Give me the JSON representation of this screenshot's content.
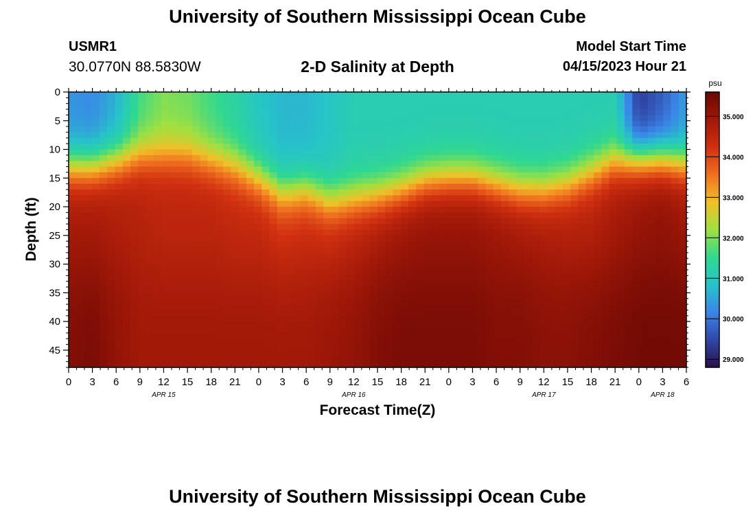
{
  "header": {
    "title": "University of Southern Mississippi Ocean Cube",
    "station_id": "USMR1",
    "coordinates": "30.0770N  88.5830W",
    "plot_title": "2-D Salinity at Depth",
    "model_start_label": "Model Start Time",
    "model_start_value": "04/15/2023 Hour 21"
  },
  "footer": {
    "title": "University of Southern Mississippi Ocean Cube"
  },
  "chart_data": {
    "type": "heatmap",
    "title": "2-D Salinity at Depth",
    "xlabel": "Forecast Time(Z)",
    "ylabel": "Depth (ft)",
    "x_range_hours": [
      0,
      78
    ],
    "ylim": [
      0,
      48
    ],
    "y_inverted": true,
    "x_tick_labels": [
      "0",
      "3",
      "6",
      "9",
      "12",
      "15",
      "18",
      "21",
      "0",
      "3",
      "6",
      "9",
      "12",
      "15",
      "18",
      "21",
      "0",
      "3",
      "6",
      "9",
      "12",
      "15",
      "18",
      "21",
      "0",
      "3",
      "6"
    ],
    "date_labels": [
      {
        "label": "APR 15",
        "hour": 12
      },
      {
        "label": "APR 16",
        "hour": 36
      },
      {
        "label": "APR 17",
        "hour": 60
      },
      {
        "label": "APR 18",
        "hour": 75
      }
    ],
    "y_ticks": [
      0,
      5,
      10,
      15,
      20,
      25,
      30,
      35,
      40,
      45
    ],
    "colorbar": {
      "unit": "psu",
      "min": 28.8,
      "max": 35.6,
      "tick_labels": [
        "29.000",
        "30.000",
        "31.000",
        "32.000",
        "33.000",
        "34.000",
        "35.000"
      ],
      "tick_values": [
        29,
        30,
        31,
        32,
        33,
        34,
        35
      ],
      "colors": [
        "#2a0f4a",
        "#3048a8",
        "#3a86e8",
        "#26c4c8",
        "#30d890",
        "#a0e040",
        "#f0c028",
        "#f07020",
        "#d03010",
        "#a01808",
        "#6a0804"
      ]
    },
    "salinity_profile": {
      "time_hours": [
        0,
        3,
        6,
        9,
        12,
        15,
        18,
        21,
        24,
        27,
        30,
        33,
        36,
        39,
        42,
        45,
        48,
        51,
        54,
        57,
        60,
        63,
        66,
        69,
        72,
        75,
        78
      ],
      "surface_psu": [
        30.3,
        30.2,
        30.6,
        31.6,
        32.0,
        31.9,
        31.6,
        31.3,
        30.9,
        30.7,
        30.7,
        30.9,
        31.1,
        31.1,
        31.1,
        31.1,
        31.1,
        31.1,
        31.1,
        31.1,
        31.1,
        31.1,
        31.1,
        31.1,
        29.3,
        29.7,
        30.4
      ],
      "halocline_ft": [
        13.0,
        13.0,
        12.0,
        11.0,
        11.0,
        11.0,
        12.0,
        13.0,
        15.0,
        17.5,
        17.0,
        19.0,
        18.5,
        18.0,
        17.0,
        15.5,
        15.0,
        15.0,
        16.0,
        17.0,
        17.0,
        16.0,
        14.0,
        12.0,
        11.5,
        11.5,
        12.5
      ],
      "mid_psu": [
        34.8,
        34.8,
        34.7,
        34.6,
        34.5,
        34.5,
        34.5,
        34.4,
        34.4,
        34.2,
        34.3,
        34.3,
        34.5,
        34.7,
        34.9,
        35.0,
        35.0,
        35.0,
        34.9,
        34.8,
        34.7,
        34.6,
        34.6,
        34.8,
        35.0,
        35.1,
        34.9
      ],
      "deep_psu": [
        35.3,
        35.4,
        35.1,
        34.9,
        34.9,
        34.9,
        34.9,
        34.9,
        34.9,
        34.9,
        34.9,
        35.0,
        35.1,
        35.3,
        35.4,
        35.4,
        35.4,
        35.4,
        35.3,
        35.3,
        35.2,
        35.2,
        35.3,
        35.4,
        35.5,
        35.5,
        35.5
      ]
    }
  }
}
